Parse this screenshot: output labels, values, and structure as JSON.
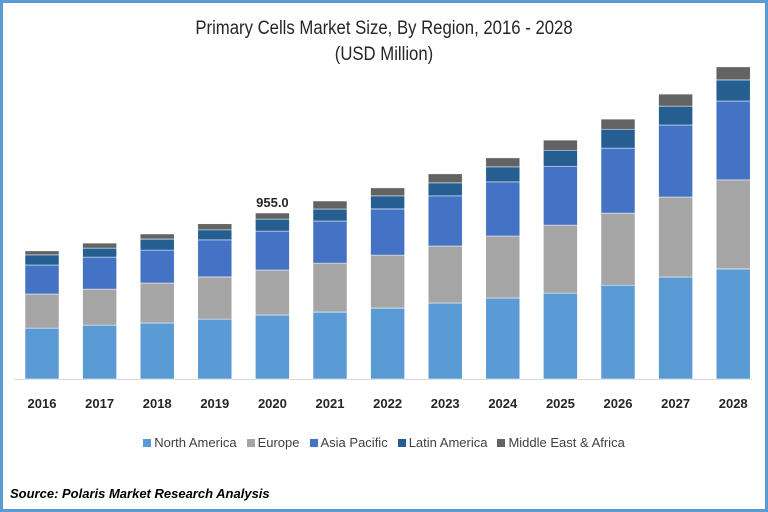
{
  "chart_data": {
    "type": "bar",
    "stacked": true,
    "title": "Primary Cells Market Size, By Region, 2016 - 2028",
    "subtitle": "(USD Million)",
    "xlabel": "",
    "ylabel": "",
    "ylim": [
      0,
      1950
    ],
    "grid": false,
    "legend_position": "bottom",
    "categories": [
      "2016",
      "2017",
      "2018",
      "2019",
      "2020",
      "2021",
      "2022",
      "2023",
      "2024",
      "2025",
      "2026",
      "2027",
      "2028"
    ],
    "series": [
      {
        "name": "North America",
        "color": "#5b9bd5",
        "values": [
          293,
          310,
          322,
          345,
          368,
          385,
          408,
          437,
          466,
          494,
          540,
          587,
          633
        ]
      },
      {
        "name": "Europe",
        "color": "#a5a5a5",
        "values": [
          196,
          207,
          230,
          242,
          259,
          282,
          305,
          328,
          357,
          391,
          414,
          460,
          512
        ]
      },
      {
        "name": "Asia Pacific",
        "color": "#4472c4",
        "values": [
          167,
          184,
          190,
          213,
          224,
          242,
          265,
          288,
          311,
          339,
          374,
          414,
          454
        ]
      },
      {
        "name": "Latin America",
        "color": "#255e91",
        "values": [
          58,
          52,
          63,
          58,
          69,
          69,
          75,
          75,
          86,
          92,
          109,
          109,
          121
        ]
      },
      {
        "name": "Middle East & Africa",
        "color": "#636363",
        "values": [
          23,
          29,
          29,
          35,
          35,
          46,
          46,
          52,
          52,
          58,
          58,
          69,
          75
        ]
      }
    ],
    "annotations": [
      {
        "category": "2020",
        "text": "955.0"
      }
    ]
  },
  "source": "Source: Polaris  Market Research Analysis"
}
